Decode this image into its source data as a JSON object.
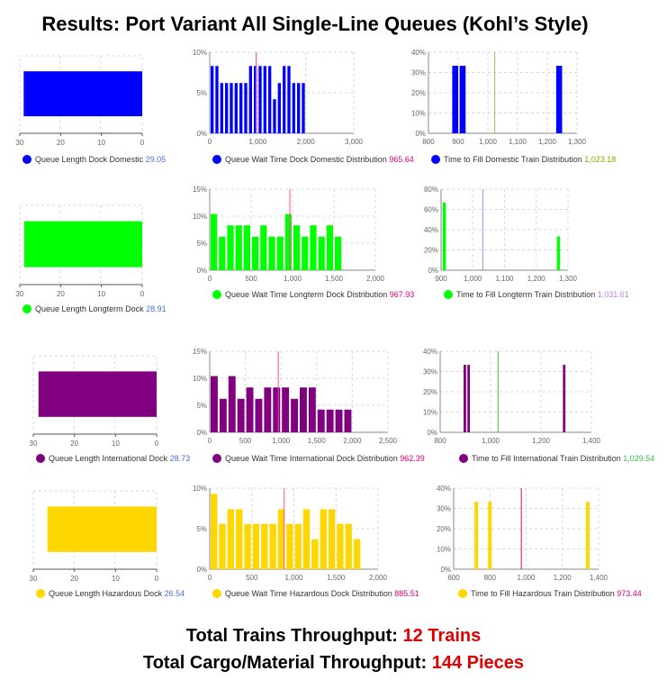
{
  "title": "Results: Port Variant All Single-Line Queues (Kohl’s Style)",
  "footer": {
    "trains_label": "Total Trains Throughput: ",
    "trains_value": "12 Trains",
    "cargo_label": "Total Cargo/Material Throughput: ",
    "cargo_value": "144 Pieces"
  },
  "chart_data": [
    {
      "type": "bar",
      "orientation": "horizontal",
      "color": "#0000ff",
      "legend": "Queue Length Dock Domestic",
      "stat": "29.05",
      "stat_color": "#4a6fe0",
      "xlim": [
        30,
        0
      ],
      "ticks": [
        "30",
        "20",
        "10",
        "0"
      ],
      "value": 29.05
    },
    {
      "type": "bar",
      "color": "#0000ff",
      "legend": "Queue Wait Time Dock Domestic Distribution",
      "stat": "965.64",
      "stat_color": "#e0007a",
      "xlim": [
        0,
        3000
      ],
      "xticks": [
        0,
        1000,
        2000,
        3000
      ],
      "xtick_labels": [
        "0",
        "1,000",
        "2,000",
        "3,000"
      ],
      "ylim": [
        0,
        10
      ],
      "yticks": [
        0,
        5,
        10
      ],
      "ytick_labels": [
        "0%",
        "5%",
        "10%"
      ],
      "bin_width": 100,
      "bin_start": 0,
      "values": [
        8.3,
        8.3,
        6.2,
        6.2,
        6.2,
        6.2,
        6.2,
        6.2,
        8.3,
        8.3,
        8.3,
        8.3,
        8.3,
        4.2,
        6.2,
        8.3,
        8.3,
        6.2,
        6.2,
        6.2
      ],
      "mean_line": 965.64,
      "mean_color": "#ff4da6"
    },
    {
      "type": "bar",
      "color": "#0000ff",
      "legend": "Time to Fill Domestic Train Distribution",
      "stat": "1,023.18",
      "stat_color": "#8aa800",
      "xlim": [
        800,
        1300
      ],
      "xticks": [
        800,
        900,
        1000,
        1100,
        1200,
        1300
      ],
      "xtick_labels": [
        "800",
        "900",
        "1,000",
        "1,100",
        "1,200",
        "1,300"
      ],
      "ylim": [
        0,
        40
      ],
      "yticks": [
        0,
        10,
        20,
        30,
        40
      ],
      "ytick_labels": [
        "0%",
        "10%",
        "20%",
        "30%",
        "40%"
      ],
      "bars": [
        {
          "x0": 880,
          "x1": 900,
          "v": 33.3
        },
        {
          "x0": 905,
          "x1": 925,
          "v": 33.3
        },
        {
          "x0": 1230,
          "x1": 1250,
          "v": 33.3
        }
      ],
      "mean_line": 1023.18,
      "mean_color": "#b0b060"
    },
    {
      "type": "bar",
      "orientation": "horizontal",
      "color": "#00ff00",
      "legend": "Queue Length Longterm Dock",
      "stat": "28.91",
      "stat_color": "#4a6fe0",
      "xlim": [
        30,
        0
      ],
      "ticks": [
        "30",
        "20",
        "10",
        "0"
      ],
      "value": 28.91
    },
    {
      "type": "bar",
      "color": "#00ff00",
      "legend": "Queue Wait Time Longterm Dock Distribution",
      "stat": "967.93",
      "stat_color": "#e0007a",
      "xlim": [
        0,
        2000
      ],
      "xticks": [
        0,
        500,
        1000,
        1500,
        2000
      ],
      "xtick_labels": [
        "0",
        "500",
        "1,000",
        "1,500",
        "2,000"
      ],
      "ylim": [
        0,
        15
      ],
      "yticks": [
        0,
        5,
        10,
        15
      ],
      "ytick_labels": [
        "0%",
        "5%",
        "10%",
        "15%"
      ],
      "bin_width": 100,
      "bin_start": 0,
      "values": [
        10.4,
        6.2,
        8.3,
        8.3,
        8.3,
        6.2,
        8.3,
        6.2,
        6.2,
        10.4,
        8.3,
        6.2,
        8.3,
        6.2,
        8.3,
        6.2
      ],
      "mean_line": 967.93,
      "mean_color": "#ff4da6"
    },
    {
      "type": "bar",
      "color": "#00ff00",
      "legend": "Time to Fill Longterm Train Distribution",
      "stat": "1,031.61",
      "stat_color": "#c080e0",
      "xlim": [
        900,
        1300
      ],
      "xticks": [
        900,
        1000,
        1100,
        1200,
        1300
      ],
      "xtick_labels": [
        "900",
        "1,000",
        "1,100",
        "1,200",
        "1,300"
      ],
      "ylim": [
        0,
        80
      ],
      "yticks": [
        0,
        20,
        40,
        60,
        80
      ],
      "ytick_labels": [
        "0%",
        "20%",
        "40%",
        "60%",
        "80%"
      ],
      "bars": [
        {
          "x0": 905,
          "x1": 915,
          "v": 66.7
        },
        {
          "x0": 1265,
          "x1": 1275,
          "v": 33.3
        }
      ],
      "mean_line": 1031.61,
      "mean_color": "#c080e0"
    },
    {
      "type": "bar",
      "orientation": "horizontal",
      "color": "#800080",
      "legend": "Queue Length International Dock",
      "stat": "28.73",
      "stat_color": "#4a6fe0",
      "xlim": [
        30,
        0
      ],
      "ticks": [
        "30",
        "20",
        "10",
        "0"
      ],
      "value": 28.73
    },
    {
      "type": "bar",
      "color": "#800080",
      "legend": "Queue Wait Time International Dock Distribution",
      "stat": "962.39",
      "stat_color": "#e0007a",
      "xlim": [
        0,
        2500
      ],
      "xticks": [
        0,
        500,
        1000,
        1500,
        2000,
        2500
      ],
      "xtick_labels": [
        "0",
        "500",
        "1,000",
        "1,500",
        "2,000",
        "2,500"
      ],
      "ylim": [
        0,
        15
      ],
      "yticks": [
        0,
        5,
        10,
        15
      ],
      "ytick_labels": [
        "0%",
        "5%",
        "10%",
        "15%"
      ],
      "bin_width": 125,
      "bin_start": 0,
      "values": [
        10.4,
        6.2,
        10.4,
        6.2,
        8.3,
        6.2,
        8.3,
        8.3,
        8.3,
        6.2,
        8.3,
        8.3,
        4.2,
        4.2,
        4.2,
        4.2
      ],
      "mean_line": 962.39,
      "mean_color": "#ff4da6"
    },
    {
      "type": "bar",
      "color": "#800080",
      "legend": "Time to Fill International Train Distribution",
      "stat": "1,029.54",
      "stat_color": "#40c040",
      "xlim": [
        800,
        1400
      ],
      "xticks": [
        800,
        1000,
        1200,
        1400
      ],
      "xtick_labels": [
        "800",
        "1,000",
        "1,200",
        "1,400"
      ],
      "ylim": [
        0,
        40
      ],
      "yticks": [
        0,
        10,
        20,
        30,
        40
      ],
      "ytick_labels": [
        "0%",
        "10%",
        "20%",
        "30%",
        "40%"
      ],
      "bars": [
        {
          "x0": 893,
          "x1": 903,
          "v": 33.3
        },
        {
          "x0": 908,
          "x1": 918,
          "v": 33.3
        },
        {
          "x0": 1287,
          "x1": 1297,
          "v": 33.3
        }
      ],
      "mean_line": 1029.54,
      "mean_color": "#40c040"
    },
    {
      "type": "bar",
      "orientation": "horizontal",
      "color": "#ffd700",
      "legend": "Queue Length Hazardous Dock",
      "stat": "26.54",
      "stat_color": "#4a6fe0",
      "xlim": [
        30,
        0
      ],
      "ticks": [
        "30",
        "20",
        "10",
        "0"
      ],
      "value": 26.54
    },
    {
      "type": "bar",
      "color": "#ffd700",
      "legend": "Queue Wait Time Hazardous Dock Distribution",
      "stat": "885.51",
      "stat_color": "#e0007a",
      "xlim": [
        0,
        2000
      ],
      "xticks": [
        0,
        500,
        1000,
        1500,
        2000
      ],
      "xtick_labels": [
        "0",
        "500",
        "1,000",
        "1,500",
        "2,000"
      ],
      "ylim": [
        0,
        10
      ],
      "yticks": [
        0,
        5,
        10
      ],
      "ytick_labels": [
        "0%",
        "5%",
        "10%"
      ],
      "bin_width": 100,
      "bin_start": 0,
      "values": [
        9.3,
        5.6,
        7.4,
        7.4,
        5.6,
        5.6,
        5.6,
        5.6,
        7.4,
        5.6,
        5.6,
        7.4,
        3.7,
        7.4,
        7.4,
        5.6,
        5.6,
        3.7
      ],
      "mean_line": 885.51,
      "mean_color": "#ff4da6"
    },
    {
      "type": "bar",
      "color": "#ffd700",
      "legend": "Time to Fill Hazardous Train Distribution",
      "stat": "973.44",
      "stat_color": "#e0007a",
      "xlim": [
        600,
        1400
      ],
      "xticks": [
        600,
        800,
        1000,
        1200,
        1400
      ],
      "xtick_labels": [
        "600",
        "800",
        "1,000",
        "1,200",
        "1,400"
      ],
      "ylim": [
        0,
        40
      ],
      "yticks": [
        0,
        10,
        20,
        30,
        40
      ],
      "ytick_labels": [
        "0%",
        "10%",
        "20%",
        "30%",
        "40%"
      ],
      "bars": [
        {
          "x0": 715,
          "x1": 735,
          "v": 33.3
        },
        {
          "x0": 790,
          "x1": 810,
          "v": 33.3
        },
        {
          "x0": 1330,
          "x1": 1350,
          "v": 33.3
        }
      ],
      "mean_line": 973.44,
      "mean_color": "#e0007a"
    }
  ]
}
